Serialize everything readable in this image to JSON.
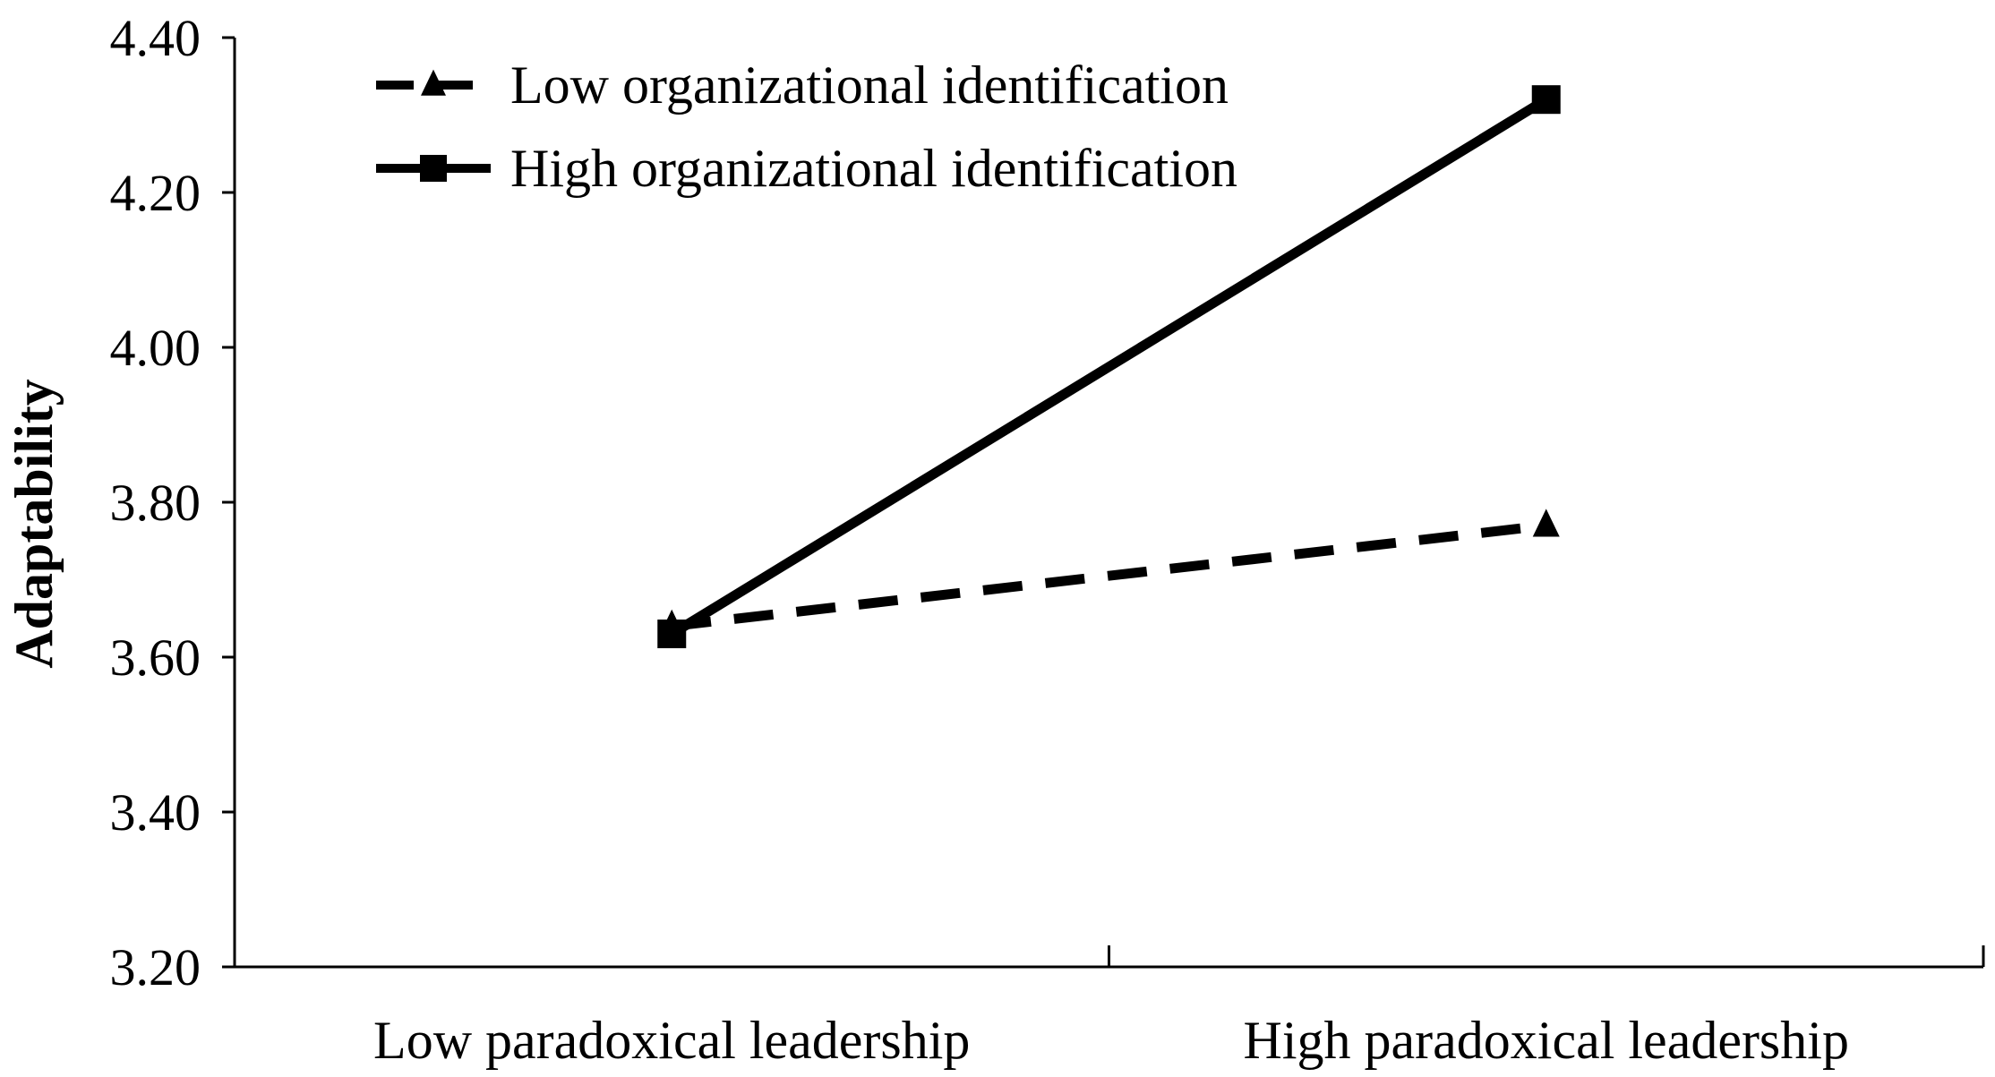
{
  "chart_data": {
    "type": "line",
    "title": "",
    "xlabel": "",
    "ylabel": "Adaptability",
    "categories": [
      "Low paradoxical leadership",
      "High paradoxical leadership"
    ],
    "ylim": [
      3.2,
      4.4
    ],
    "yticks": [
      "3.20",
      "3.40",
      "3.60",
      "3.80",
      "4.00",
      "4.20",
      "4.40"
    ],
    "grid": false,
    "legend_position": "top-left",
    "series": [
      {
        "name": "Low organizational identification",
        "values": [
          3.64,
          3.77
        ],
        "line_style": "dashed",
        "marker": "triangle",
        "color": "#000000"
      },
      {
        "name": "High organizational identification",
        "values": [
          3.63,
          4.32
        ],
        "line_style": "solid",
        "marker": "square",
        "color": "#000000"
      }
    ]
  }
}
